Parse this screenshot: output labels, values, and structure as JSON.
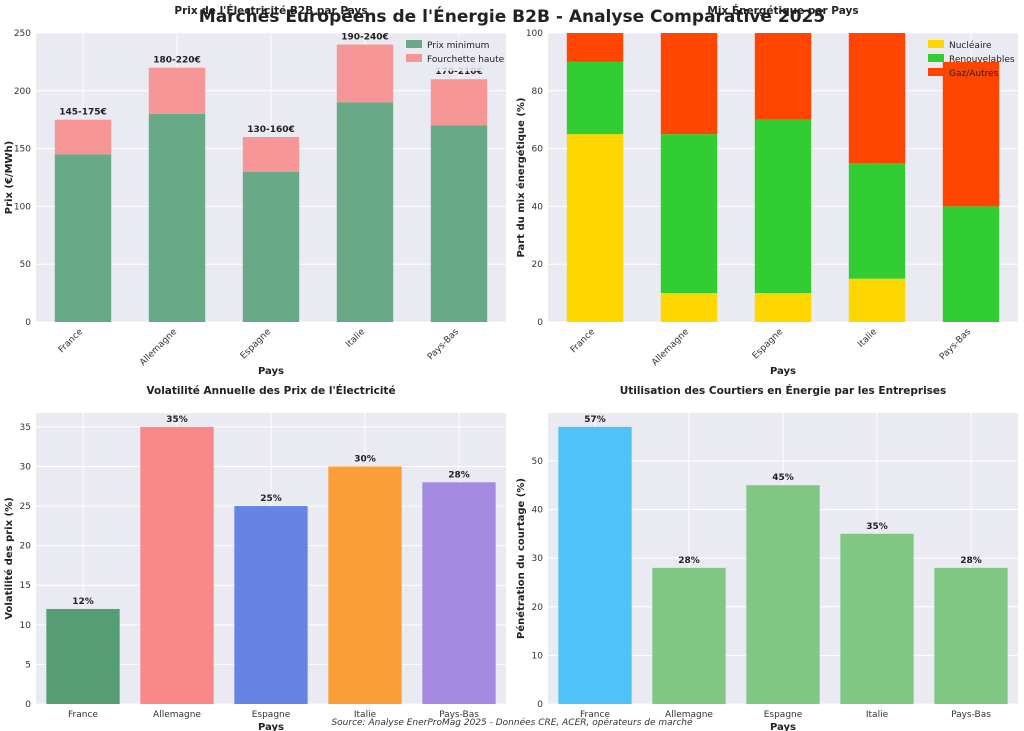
{
  "suptitle": "Marchés Européens de l'Énergie B2B - Analyse Comparative 2025",
  "source": "Source: Analyse EnerProMag 2025 - Données CRE, ACER, opérateurs de marché",
  "chart_data": [
    {
      "id": "prices",
      "type": "bar",
      "stacked": true,
      "title": "Prix de l'Électricité B2B par Pays",
      "xlabel": "Pays",
      "ylabel": "Prix (€/MWh)",
      "ylim": [
        0,
        250
      ],
      "yticks": [
        0,
        50,
        100,
        150,
        200,
        250
      ],
      "categories": [
        "France",
        "Allemagne",
        "Espagne",
        "Italie",
        "Pays-Bas"
      ],
      "rotate_xticks": true,
      "series": [
        {
          "name": "Prix minimum",
          "values": [
            145,
            180,
            130,
            190,
            170
          ],
          "color": "#68a987"
        },
        {
          "name": "Fourchette haute",
          "values": [
            30,
            40,
            30,
            50,
            40
          ],
          "color": "#f79696"
        }
      ],
      "data_labels": [
        "145-175€",
        "180-220€",
        "130-160€",
        "190-240€",
        "170-210€"
      ],
      "legend": "top-right"
    },
    {
      "id": "mix",
      "type": "bar",
      "stacked": true,
      "title": "Mix Énergétique par Pays",
      "xlabel": "Pays",
      "ylabel": "Part du mix énergétique (%)",
      "ylim": [
        0,
        100
      ],
      "yticks": [
        0,
        20,
        40,
        60,
        80,
        100
      ],
      "categories": [
        "France",
        "Allemagne",
        "Espagne",
        "Italie",
        "Pays-Bas"
      ],
      "rotate_xticks": true,
      "series": [
        {
          "name": "Nucléaire",
          "values": [
            65,
            10,
            10,
            15,
            0
          ],
          "color": "#ffd700"
        },
        {
          "name": "Renouvelables",
          "values": [
            25,
            55,
            60,
            40,
            40
          ],
          "color": "#32cd32"
        },
        {
          "name": "Gaz/Autres",
          "values": [
            10,
            35,
            30,
            45,
            50
          ],
          "color": "#ff4500"
        }
      ],
      "legend": "top-right"
    },
    {
      "id": "volatility",
      "type": "bar",
      "title": "Volatilité Annuelle des Prix de l'Électricité",
      "xlabel": "Pays",
      "ylabel": "Volatilité des prix (%)",
      "ylim": [
        0,
        36.75
      ],
      "yticks": [
        0,
        5,
        10,
        15,
        20,
        25,
        30,
        35
      ],
      "categories": [
        "France",
        "Allemagne",
        "Espagne",
        "Italie",
        "Pays-Bas"
      ],
      "rotate_xticks": false,
      "values": [
        12,
        35,
        25,
        30,
        28
      ],
      "colors": [
        "#569d74",
        "#f98888",
        "#6584e3",
        "#f99f36",
        "#a48ae0"
      ],
      "data_labels": [
        "12%",
        "35%",
        "25%",
        "30%",
        "28%"
      ]
    },
    {
      "id": "brokers",
      "type": "bar",
      "title": "Utilisation des Courtiers en Énergie par les Entreprises",
      "xlabel": "Pays",
      "ylabel": "Pénétration du courtage (%)",
      "ylim": [
        0,
        59.85
      ],
      "yticks": [
        0,
        10,
        20,
        30,
        40,
        50
      ],
      "categories": [
        "France",
        "Allemagne",
        "Espagne",
        "Italie",
        "Pays-Bas"
      ],
      "rotate_xticks": false,
      "values": [
        57,
        28,
        45,
        35,
        28
      ],
      "colors": [
        "#4fc3f7",
        "#81c784",
        "#81c784",
        "#81c784",
        "#81c784"
      ],
      "data_labels": [
        "57%",
        "28%",
        "45%",
        "35%",
        "28%"
      ]
    }
  ]
}
